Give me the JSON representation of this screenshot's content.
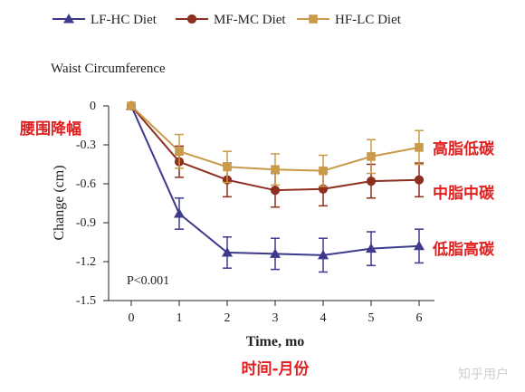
{
  "chart_data": {
    "type": "line",
    "title": "Waist Circumference",
    "xlabel": "Time, mo",
    "ylabel": "Change (cm)",
    "x": [
      0,
      1,
      2,
      3,
      4,
      5,
      6
    ],
    "xlim": [
      0,
      6
    ],
    "ylim": [
      -1.5,
      0
    ],
    "yticks": [
      0,
      -0.3,
      -0.6,
      -0.9,
      -1.2,
      -1.5
    ],
    "ytick_labels": [
      "0",
      "-0.3",
      "-0.6",
      "-0.9",
      "-1.2",
      "-1.5"
    ],
    "xtick_labels": [
      "0",
      "1",
      "2",
      "3",
      "4",
      "5",
      "6"
    ],
    "grid": false,
    "legend_position": "top",
    "series": [
      {
        "name": "LF-HC Diet",
        "marker": "triangle",
        "color": "#3d3a8c",
        "values": [
          0,
          -0.83,
          -1.13,
          -1.14,
          -1.15,
          -1.1,
          -1.08
        ],
        "error": [
          0,
          0.12,
          0.12,
          0.12,
          0.13,
          0.13,
          0.13
        ],
        "annotation": "低脂高碳"
      },
      {
        "name": "MF-MC Diet",
        "marker": "circle",
        "color": "#8c2f1e",
        "values": [
          0,
          -0.43,
          -0.57,
          -0.65,
          -0.64,
          -0.58,
          -0.57
        ],
        "error": [
          0,
          0.12,
          0.13,
          0.13,
          0.13,
          0.13,
          0.13
        ],
        "annotation": "中脂中碳"
      },
      {
        "name": "HF-LC Diet",
        "marker": "square",
        "color": "#c99a4a",
        "values": [
          0,
          -0.35,
          -0.47,
          -0.49,
          -0.5,
          -0.39,
          -0.32
        ],
        "error": [
          0,
          0.13,
          0.12,
          0.12,
          0.12,
          0.13,
          0.13
        ],
        "annotation": "高脂低碳"
      }
    ],
    "significance_note": "P<0.001",
    "annotations": {
      "y_axis_cn": "腰围降幅",
      "x_axis_cn": "时间-月份"
    }
  },
  "watermark": "知乎用户"
}
